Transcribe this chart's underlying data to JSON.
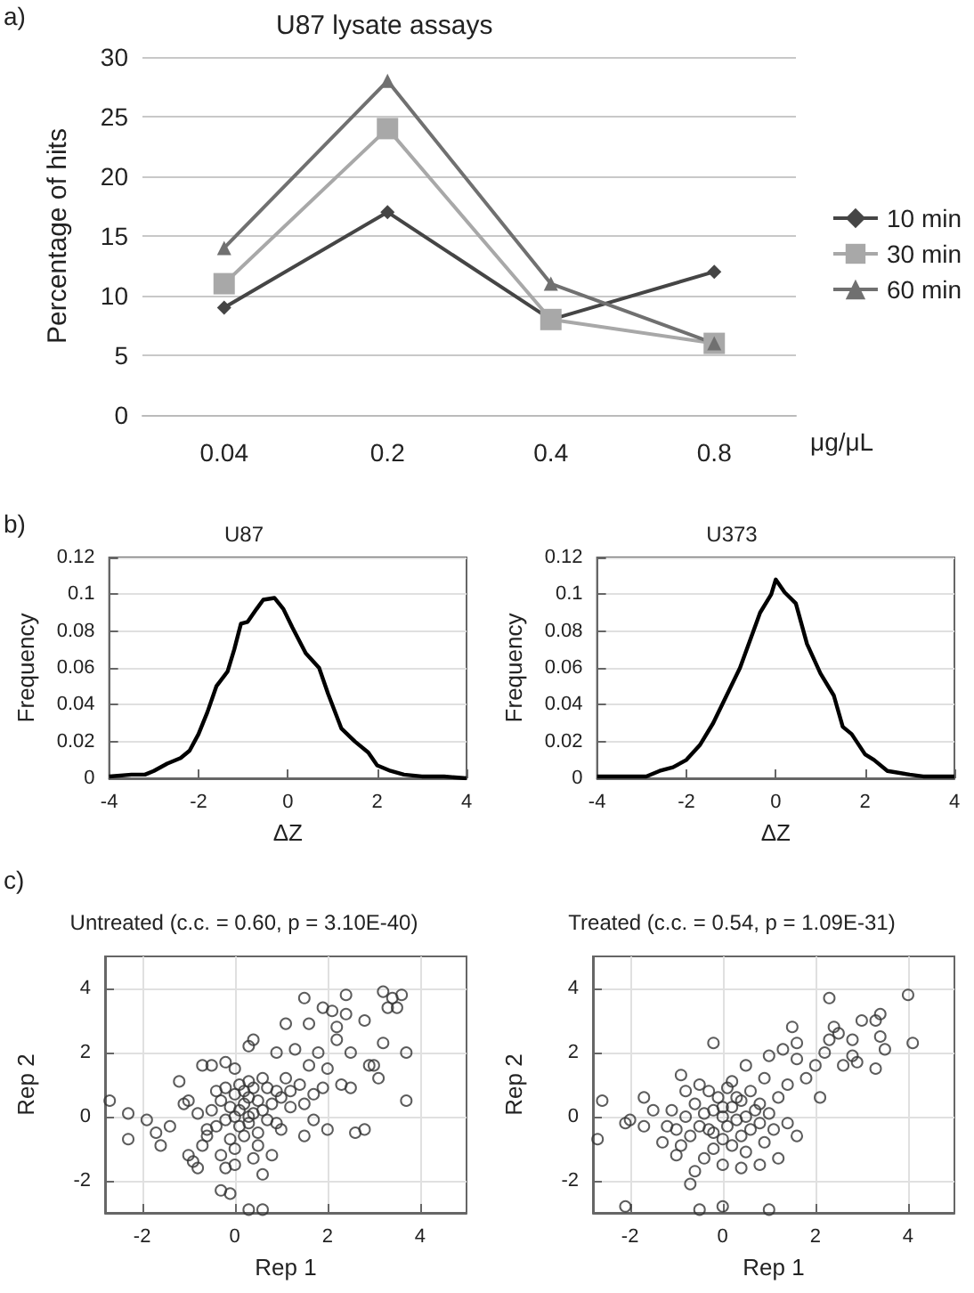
{
  "chart_data": [
    {
      "type": "line",
      "title": "U87 lysate assays",
      "xlabel": "μg/μL",
      "ylabel": "Percentage of hits",
      "categories": [
        "0.04",
        "0.2",
        "0.4",
        "0.8"
      ],
      "ylim": [
        0,
        30
      ],
      "yticks": [
        0,
        5,
        10,
        15,
        20,
        25,
        30
      ],
      "grid": "y",
      "legend": "right",
      "annotations": [
        "a)"
      ],
      "series": [
        {
          "name": "10 min",
          "color": "#454545",
          "marker": "diamond",
          "values": [
            9,
            17,
            8,
            12
          ]
        },
        {
          "name": "30 min",
          "color": "#a8a8a8",
          "marker": "square",
          "values": [
            11,
            24,
            8,
            6
          ]
        },
        {
          "name": "60 min",
          "color": "#707070",
          "marker": "triangle",
          "values": [
            14,
            28,
            11,
            6
          ]
        }
      ]
    },
    {
      "type": "line",
      "title": "U87",
      "xlabel": "ΔZ",
      "ylabel": "Frequency",
      "xlim": [
        -4,
        4
      ],
      "xticks": [
        -4,
        -2,
        0,
        2,
        4
      ],
      "ylim": [
        0,
        0.12
      ],
      "yticks": [
        0,
        0.02,
        0.04,
        0.06,
        0.08,
        0.1,
        0.12
      ],
      "grid": "y",
      "marker": "none",
      "annotations": [
        "b)"
      ],
      "series": [
        {
          "color": "#000000",
          "x": [
            -4,
            -3.5,
            -3.2,
            -3,
            -2.7,
            -2.4,
            -2.2,
            -2,
            -1.8,
            -1.6,
            -1.35,
            -1.2,
            -1.05,
            -0.9,
            -0.7,
            -0.55,
            -0.3,
            -0.1,
            0.1,
            0.4,
            0.7,
            0.9,
            1.2,
            1.5,
            1.8,
            2,
            2.3,
            2.6,
            3,
            3.5,
            4
          ],
          "values": [
            0.001,
            0.002,
            0.002,
            0.004,
            0.008,
            0.011,
            0.015,
            0.024,
            0.036,
            0.05,
            0.058,
            0.07,
            0.084,
            0.085,
            0.092,
            0.097,
            0.098,
            0.092,
            0.082,
            0.068,
            0.06,
            0.046,
            0.027,
            0.02,
            0.014,
            0.007,
            0.004,
            0.002,
            0.001,
            0.001,
            0
          ]
        }
      ]
    },
    {
      "type": "line",
      "title": "U373",
      "xlabel": "ΔZ",
      "ylabel": "Frequency",
      "xlim": [
        -4,
        4
      ],
      "xticks": [
        -4,
        -2,
        0,
        2,
        4
      ],
      "ylim": [
        0,
        0.12
      ],
      "yticks": [
        0,
        0.02,
        0.04,
        0.06,
        0.08,
        0.1,
        0.12
      ],
      "grid": "y",
      "marker": "none",
      "series": [
        {
          "color": "#000000",
          "x": [
            -4,
            -3.2,
            -2.9,
            -2.6,
            -2.3,
            -2,
            -1.7,
            -1.4,
            -1.1,
            -0.8,
            -0.5,
            -0.35,
            -0.1,
            0,
            0.2,
            0.45,
            0.7,
            1,
            1.3,
            1.5,
            1.7,
            2,
            2.2,
            2.5,
            3,
            3.3,
            3.7,
            4
          ],
          "values": [
            0.001,
            0.001,
            0.001,
            0.004,
            0.006,
            0.01,
            0.018,
            0.03,
            0.045,
            0.06,
            0.08,
            0.09,
            0.1,
            0.108,
            0.101,
            0.095,
            0.073,
            0.057,
            0.045,
            0.028,
            0.024,
            0.013,
            0.01,
            0.004,
            0.002,
            0.001,
            0.001,
            0.001
          ]
        }
      ]
    },
    {
      "type": "scatter",
      "title": "Untreated (c.c. = 0.60, p = 3.10E-40)",
      "xlabel": "Rep 1",
      "ylabel": "Rep 2",
      "xlim": [
        -2.8,
        5
      ],
      "xticks": [
        -2,
        0,
        2,
        4
      ],
      "ylim": [
        -3,
        5
      ],
      "yticks": [
        -2,
        0,
        2,
        4
      ],
      "grid": true,
      "marker": "circle",
      "annotations": [
        "c)"
      ],
      "series": [
        {
          "color": "#333333",
          "x": [
            -2.7,
            -2.3,
            -2.3,
            -1.9,
            -1.7,
            -1.6,
            -1.4,
            -1.2,
            -1.1,
            -1.0,
            -0.9,
            -0.8,
            -0.7,
            -0.5,
            -0.6,
            -0.3,
            -0.2,
            0,
            -0.2,
            0,
            -0.3,
            -0.1,
            0.3,
            0.6,
            0.6,
            0.4,
            0.8,
            0.3,
            0.4,
            0.9,
            1.1,
            1.1,
            1.3,
            1.5,
            1.6,
            1.6,
            1.7,
            1.5,
            1.9,
            2.0,
            2.0,
            2.1,
            2.2,
            2.3,
            2.4,
            2.4,
            2.5,
            2.5,
            2.6,
            2.8,
            2.8,
            2.9,
            3.0,
            3.1,
            3.2,
            3.2,
            3.3,
            3.4,
            3.5,
            3.6,
            3.7,
            3.7,
            2.2,
            1.8,
            1.2,
            1.0,
            0.7,
            1.4,
            1.9,
            0,
            0.1,
            0.2,
            0.3,
            0.4,
            0.5,
            -0.1,
            -0.2,
            0.1,
            0.3,
            0.6,
            0.2,
            -0.3,
            0.4,
            0.7,
            0,
            -0.4,
            0.5,
            0.8,
            0.9,
            -0.5,
            -0.6,
            -0.1,
            0.2,
            0.3,
            0.6,
            1.0,
            -0.8,
            -1.0,
            -0.7,
            0.1,
            -0.2,
            0.5,
            1.2,
            1.5,
            1.7,
            0.9,
            -0.4,
            0.0,
            0.3
          ],
          "values": [
            0.5,
            0.1,
            -0.7,
            -0.1,
            -0.5,
            -0.9,
            -0.3,
            1.1,
            0.4,
            -1.2,
            -1.4,
            -1.6,
            1.6,
            1.6,
            -0.4,
            -1.2,
            -1.6,
            -1.5,
            1.7,
            1.5,
            -2.3,
            -2.4,
            -2.9,
            -2.9,
            -1.8,
            -1.3,
            -1.2,
            2.2,
            2.4,
            2.0,
            2.9,
            1.2,
            2.1,
            3.7,
            1.6,
            2.9,
            -0.1,
            -0.6,
            3.4,
            -0.4,
            1.5,
            3.3,
            2.4,
            1.0,
            3.8,
            3.2,
            2.0,
            0.9,
            -0.5,
            -0.4,
            3.0,
            1.6,
            1.6,
            1.2,
            2.3,
            3.9,
            3.4,
            3.7,
            3.4,
            3.8,
            2.0,
            0.5,
            2.8,
            2.0,
            0.3,
            -0.4,
            0.9,
            1.0,
            0.9,
            0,
            0.2,
            0.4,
            0.6,
            0.1,
            0.5,
            0.3,
            -0.1,
            -0.3,
            -0.2,
            0.2,
            0.8,
            0.5,
            0.9,
            -0.1,
            0.7,
            -0.3,
            -0.5,
            0.4,
            0.8,
            0.2,
            -0.6,
            -0.7,
            -0.6,
            1.1,
            1.2,
            0.6,
            0.1,
            0.5,
            -0.9,
            1.0,
            0.9,
            -0.9,
            0.8,
            0.4,
            0.7,
            -0.2,
            0.8,
            -1.0,
            0.0
          ]
        }
      ]
    },
    {
      "type": "scatter",
      "title": "Treated (c.c. = 0.54, p = 1.09E-31)",
      "xlabel": "Rep 1",
      "ylabel": "Rep 2",
      "xlim": [
        -2.8,
        5
      ],
      "xticks": [
        -2,
        0,
        2,
        4
      ],
      "ylim": [
        -3,
        5
      ],
      "yticks": [
        -2,
        0,
        2,
        4
      ],
      "grid": true,
      "marker": "circle",
      "series": [
        {
          "color": "#333333",
          "x": [
            -2.7,
            -2.6,
            -2.1,
            -2.0,
            -2.1,
            -1.7,
            -1.7,
            -1.5,
            -1.3,
            -1.0,
            -0.9,
            -0.8,
            -0.7,
            -0.6,
            -0.5,
            -0.2,
            0,
            1.0,
            0.4,
            0.8,
            1.2,
            1.4,
            1.6,
            1.0,
            1.3,
            1.5,
            1.6,
            1.6,
            1.8,
            2.0,
            2.1,
            2.2,
            2.3,
            2.3,
            2.4,
            2.5,
            2.6,
            2.8,
            2.8,
            2.9,
            3.0,
            3.3,
            3.3,
            3.4,
            3.4,
            3.5,
            4.0,
            4.1,
            1.2,
            1.4,
            0.8,
            1.1,
            0.5,
            0.9,
            0,
            -0.2,
            0.1,
            -0.3,
            0.2,
            -0.1,
            0.3,
            -0.4,
            0.4,
            -0.5,
            0,
            0.2,
            -0.2,
            0.5,
            0.6,
            -0.6,
            -0.7,
            0.1,
            -0.3,
            0.4,
            0.7,
            -0.8,
            -1.0,
            -1.1,
            0.6,
            -0.4,
            0.0,
            0.2,
            1.0,
            0.9,
            -0.9,
            -0.2,
            0.3,
            0.8,
            -1.2,
            -0.5,
            0.0,
            0.5
          ],
          "values": [
            -0.7,
            0.5,
            -0.2,
            -0.1,
            -2.8,
            -0.3,
            0.6,
            0.2,
            -0.8,
            -1.2,
            1.3,
            0.8,
            -2.1,
            -1.7,
            -2.9,
            2.3,
            -2.8,
            -2.9,
            -1.6,
            -1.5,
            -1.3,
            -0.2,
            -0.6,
            1.9,
            2.1,
            2.8,
            2.3,
            1.8,
            1.2,
            1.6,
            0.6,
            2.0,
            2.4,
            3.7,
            2.8,
            2.6,
            1.6,
            2.4,
            1.9,
            1.7,
            3.0,
            1.5,
            3.0,
            3.2,
            2.5,
            2.1,
            3.8,
            2.3,
            0.6,
            1.0,
            0.4,
            -0.4,
            1.6,
            1.2,
            0,
            0.2,
            -0.3,
            -0.4,
            0.3,
            0.6,
            -0.1,
            0.1,
            0.5,
            -0.3,
            -0.7,
            -0.9,
            -1.0,
            0.0,
            -0.4,
            0.4,
            -0.6,
            0.9,
            0.8,
            -0.6,
            0.2,
            0.0,
            -0.4,
            0.2,
            0.8,
            -1.3,
            -1.5,
            1.1,
            0.1,
            -0.8,
            -0.9,
            -0.5,
            0.6,
            -0.2,
            -0.3,
            1.0,
            0.3,
            -1.1
          ]
        }
      ]
    }
  ]
}
